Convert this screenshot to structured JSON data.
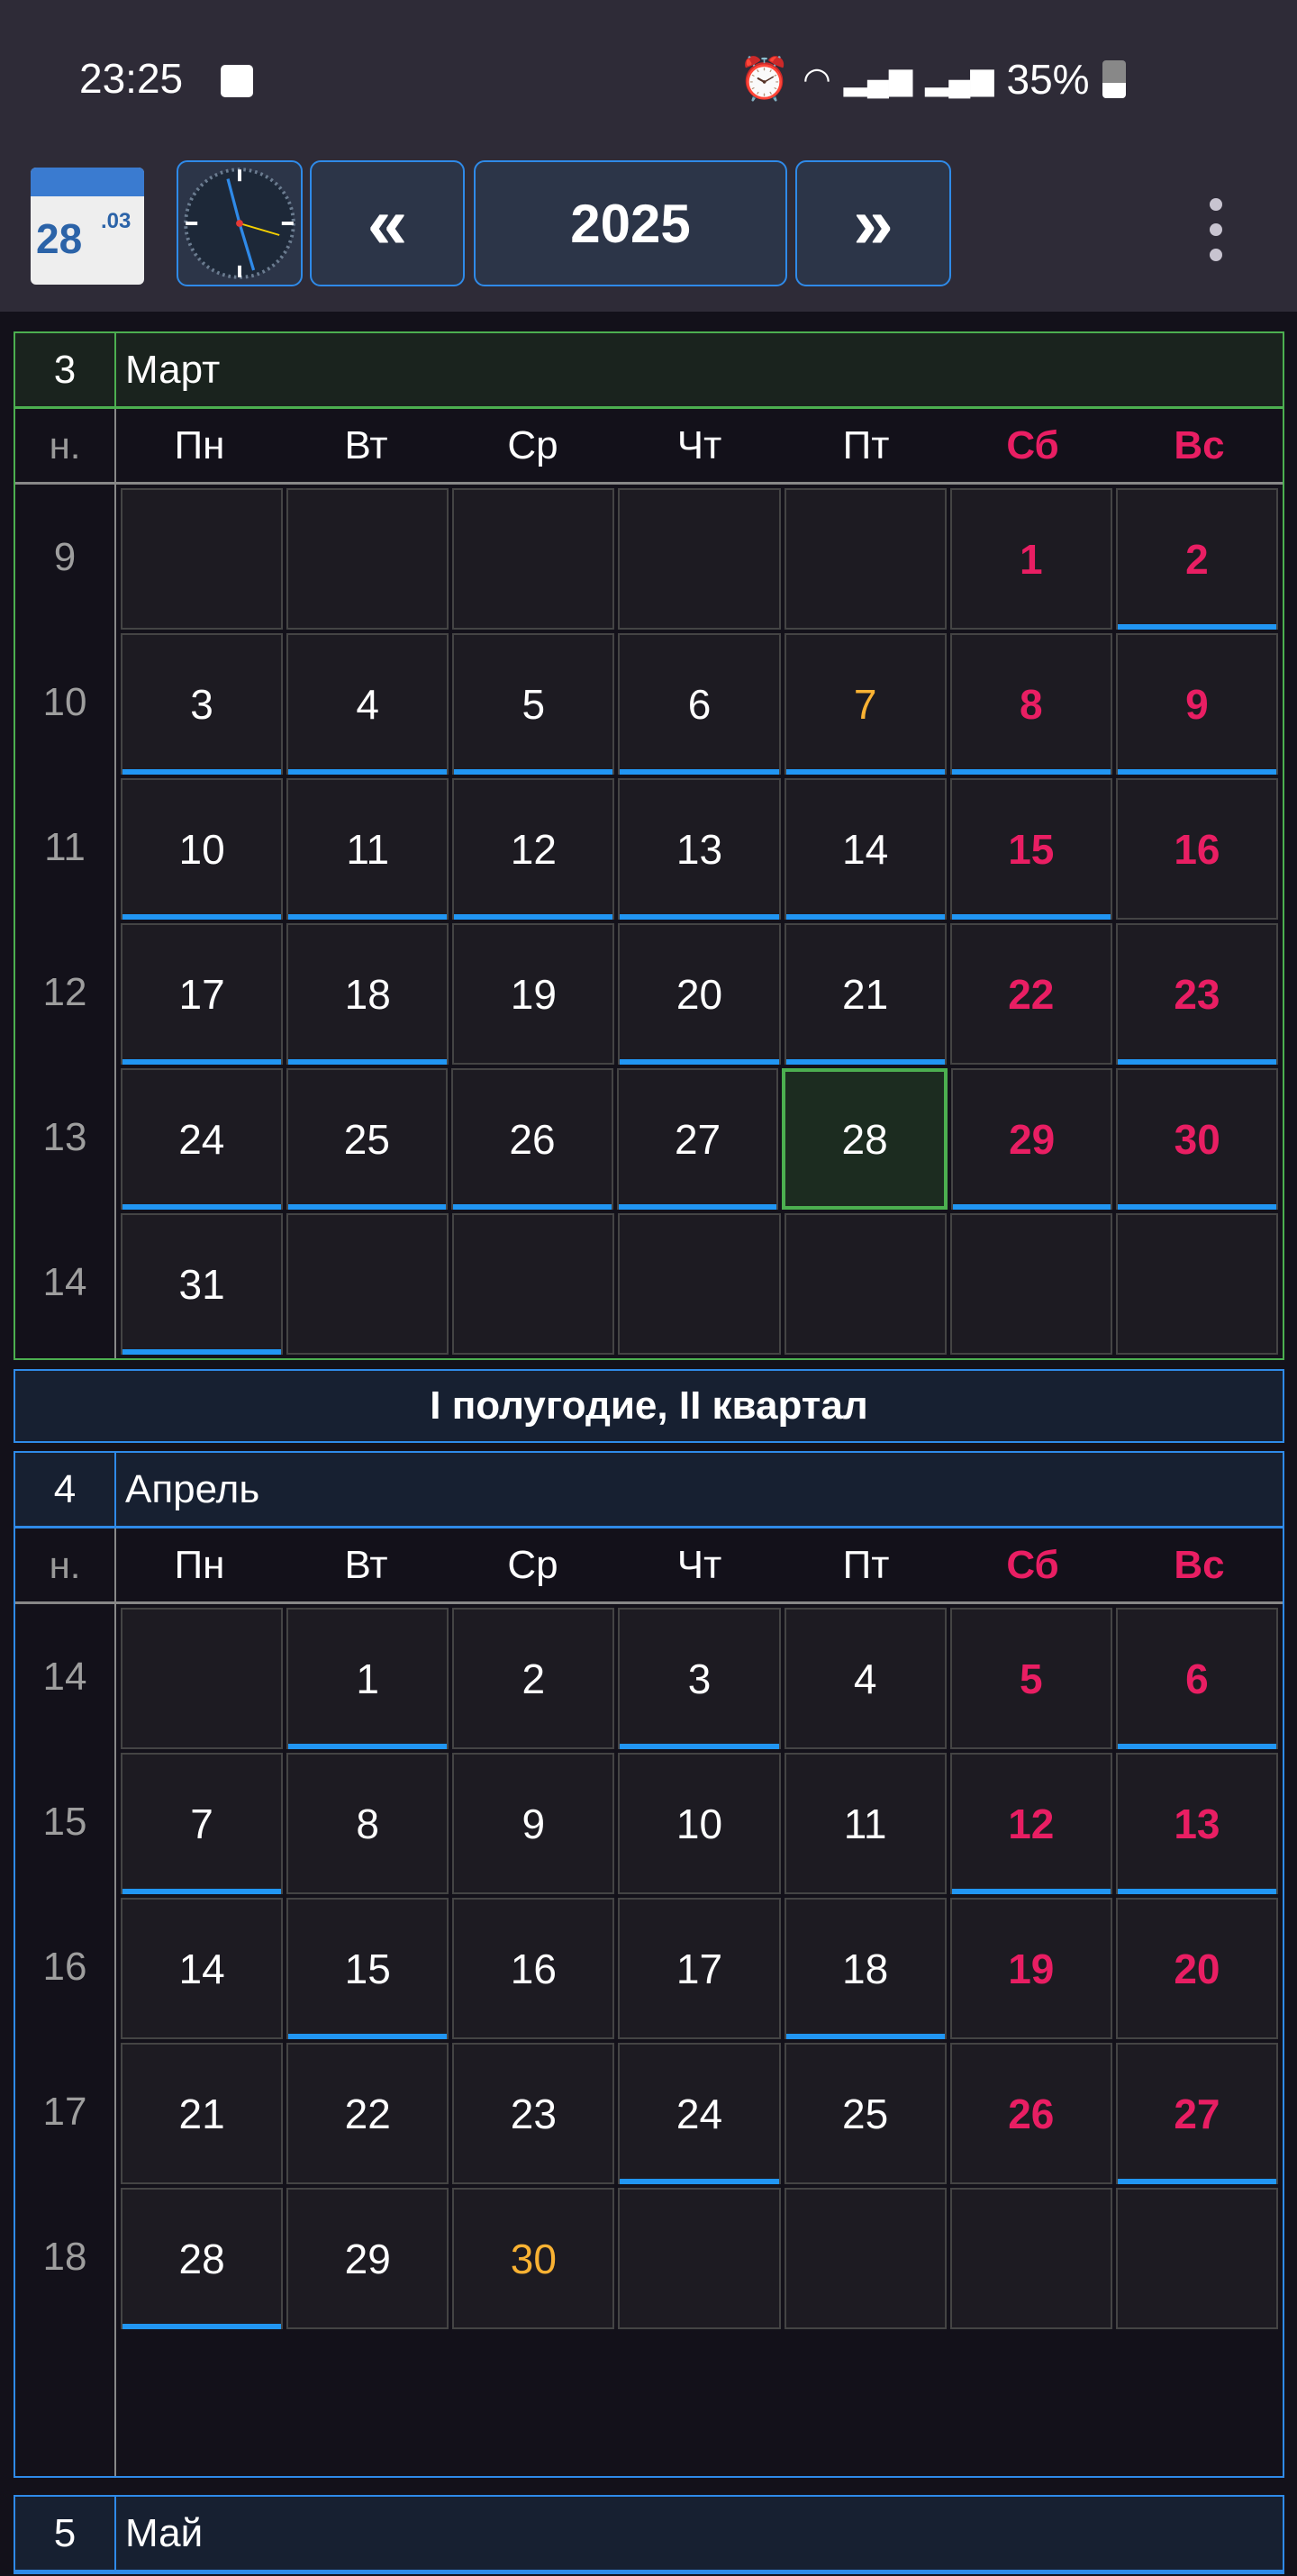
{
  "status": {
    "time": "23:25",
    "battery": "35%",
    "icons": [
      "image-icon",
      "alarm-icon",
      "wifi-icon",
      "signal-icon",
      "signal-icon",
      "battery-icon"
    ]
  },
  "toolbar": {
    "cal_day": "28",
    "cal_month": ".03",
    "prev": "«",
    "year": "2025",
    "next": "»"
  },
  "weekday_header": {
    "week": "н.",
    "days": [
      "Пн",
      "Вт",
      "Ср",
      "Чт",
      "Пт",
      "Сб",
      "Вс"
    ]
  },
  "colors": {
    "accent": "#2196f3",
    "weekend": "#e91e63",
    "holiday": "#f9b233",
    "today": "#4caf50"
  },
  "banner": "I полугодие, II квартал",
  "months": [
    {
      "num": "3",
      "name": "Март",
      "current": true,
      "weeks": [
        {
          "w": "9",
          "days": [
            null,
            null,
            null,
            null,
            null,
            {
              "d": "1"
            },
            {
              "d": "2",
              "u": 1
            }
          ]
        },
        {
          "w": "10",
          "days": [
            {
              "d": "3",
              "u": 1
            },
            {
              "d": "4",
              "u": 1
            },
            {
              "d": "5",
              "u": 1
            },
            {
              "d": "6",
              "u": 1
            },
            {
              "d": "7",
              "u": 1,
              "hol": 1
            },
            {
              "d": "8",
              "u": 1
            },
            {
              "d": "9",
              "u": 1
            }
          ]
        },
        {
          "w": "11",
          "days": [
            {
              "d": "10",
              "u": 1
            },
            {
              "d": "11",
              "u": 1
            },
            {
              "d": "12",
              "u": 1
            },
            {
              "d": "13",
              "u": 1
            },
            {
              "d": "14",
              "u": 1
            },
            {
              "d": "15",
              "u": 1
            },
            {
              "d": "16"
            }
          ]
        },
        {
          "w": "12",
          "days": [
            {
              "d": "17",
              "u": 1
            },
            {
              "d": "18",
              "u": 1
            },
            {
              "d": "19"
            },
            {
              "d": "20",
              "u": 1
            },
            {
              "d": "21",
              "u": 1
            },
            {
              "d": "22"
            },
            {
              "d": "23",
              "u": 1
            }
          ]
        },
        {
          "w": "13",
          "days": [
            {
              "d": "24",
              "u": 1
            },
            {
              "d": "25",
              "u": 1
            },
            {
              "d": "26",
              "u": 1
            },
            {
              "d": "27",
              "u": 1
            },
            {
              "d": "28",
              "today": 1
            },
            {
              "d": "29",
              "u": 1
            },
            {
              "d": "30",
              "u": 1
            }
          ]
        },
        {
          "w": "14",
          "days": [
            {
              "d": "31",
              "u": 1
            },
            null,
            null,
            null,
            null,
            null,
            null
          ]
        }
      ]
    },
    {
      "num": "4",
      "name": "Апрель",
      "weeks": [
        {
          "w": "14",
          "days": [
            null,
            {
              "d": "1",
              "u": 1
            },
            {
              "d": "2"
            },
            {
              "d": "3",
              "u": 1
            },
            {
              "d": "4"
            },
            {
              "d": "5"
            },
            {
              "d": "6",
              "u": 1
            }
          ]
        },
        {
          "w": "15",
          "days": [
            {
              "d": "7",
              "u": 1
            },
            {
              "d": "8"
            },
            {
              "d": "9"
            },
            {
              "d": "10"
            },
            {
              "d": "11"
            },
            {
              "d": "12",
              "u": 1
            },
            {
              "d": "13",
              "u": 1
            }
          ]
        },
        {
          "w": "16",
          "days": [
            {
              "d": "14"
            },
            {
              "d": "15",
              "u": 1
            },
            {
              "d": "16"
            },
            {
              "d": "17"
            },
            {
              "d": "18",
              "u": 1
            },
            {
              "d": "19"
            },
            {
              "d": "20"
            }
          ]
        },
        {
          "w": "17",
          "days": [
            {
              "d": "21"
            },
            {
              "d": "22"
            },
            {
              "d": "23"
            },
            {
              "d": "24",
              "u": 1
            },
            {
              "d": "25"
            },
            {
              "d": "26"
            },
            {
              "d": "27",
              "u": 1
            }
          ]
        },
        {
          "w": "18",
          "days": [
            {
              "d": "28",
              "u": 1
            },
            {
              "d": "29"
            },
            {
              "d": "30",
              "hol": 1
            },
            null,
            null,
            null,
            null
          ]
        }
      ]
    },
    {
      "num": "5",
      "name": "Май"
    }
  ]
}
